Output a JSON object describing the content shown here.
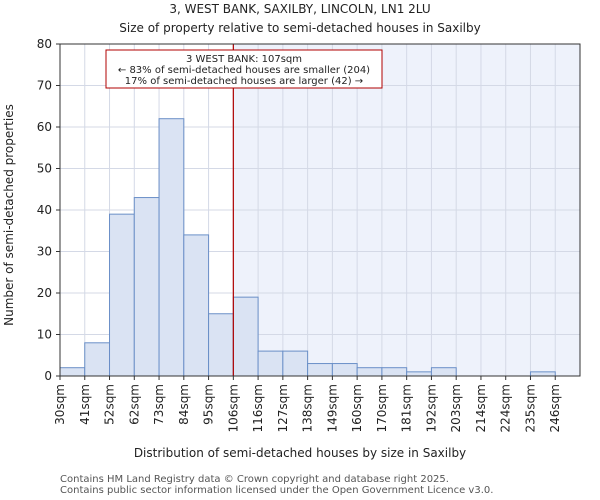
{
  "chart_data": {
    "type": "bar",
    "title": "3, WEST BANK, SAXILBY, LINCOLN, LN1 2LU",
    "subtitle": "Size of property relative to semi-detached houses in Saxilby",
    "xlabel": "Distribution of semi-detached houses by size in Saxilby",
    "ylabel": "Number of semi-detached properties",
    "categories": [
      "30sqm",
      "41sqm",
      "52sqm",
      "62sqm",
      "73sqm",
      "84sqm",
      "95sqm",
      "106sqm",
      "116sqm",
      "127sqm",
      "138sqm",
      "149sqm",
      "160sqm",
      "170sqm",
      "181sqm",
      "192sqm",
      "203sqm",
      "214sqm",
      "224sqm",
      "235sqm",
      "246sqm"
    ],
    "values": [
      2,
      8,
      39,
      43,
      62,
      34,
      15,
      19,
      6,
      6,
      3,
      3,
      2,
      2,
      1,
      2,
      0,
      0,
      0,
      1,
      0
    ],
    "ylim": [
      0,
      80
    ],
    "yticks": [
      0,
      10,
      20,
      30,
      40,
      50,
      60,
      70,
      80
    ],
    "grid": true,
    "bar_color": "#dae3f3",
    "bar_edge_color": "#6a8fc7",
    "highlight_fill": "#eef2fb",
    "marker": {
      "value_index": 7.0,
      "color": "#b00000",
      "label": "3 WEST BANK: 107sqm",
      "line1": "← 83% of semi-detached houses are smaller (204)",
      "line2": "17% of semi-detached houses are larger (42) →"
    }
  },
  "footer": {
    "line1": "Contains HM Land Registry data © Crown copyright and database right 2025.",
    "line2": "Contains public sector information licensed under the Open Government Licence v3.0."
  }
}
